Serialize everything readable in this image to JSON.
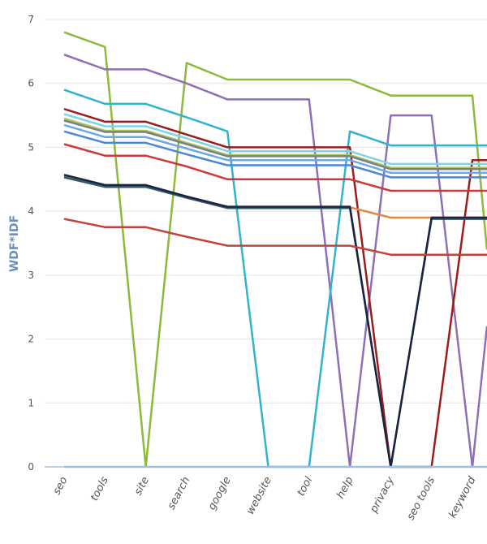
{
  "chart_data": {
    "type": "line",
    "title": "",
    "xlabel": "",
    "ylabel": "WDF*IDF",
    "ylim": [
      0,
      7
    ],
    "yticks": [
      0,
      1,
      2,
      3,
      4,
      5,
      6,
      7
    ],
    "categories": [
      "seo",
      "tools",
      "site",
      "search",
      "google",
      "website",
      "tool",
      "help",
      "privacy",
      "seo tools",
      "keyword"
    ],
    "series": [
      {
        "name": "green",
        "color": "#8cba3a",
        "values": [
          6.8,
          6.57,
          0,
          6.32,
          6.06,
          6.06,
          6.06,
          6.06,
          5.81,
          5.81,
          5.81
        ],
        "tail": 3.4
      },
      {
        "name": "purple",
        "color": "#8e6fb6",
        "values": [
          6.45,
          6.22,
          6.22,
          6.0,
          5.75,
          5.75,
          5.75,
          0,
          5.5,
          5.5,
          0
        ],
        "tail": 2.2
      },
      {
        "name": "teal",
        "color": "#31b3cd",
        "values": [
          5.9,
          5.68,
          5.68,
          5.47,
          5.25,
          0,
          0,
          5.25,
          5.03,
          5.03,
          5.03
        ],
        "tail": 5.03
      },
      {
        "name": "darkred",
        "color": "#9b1c1c",
        "values": [
          5.6,
          5.4,
          5.4,
          5.2,
          5.0,
          5.0,
          5.0,
          5.0,
          0,
          0,
          4.8
        ],
        "tail": 4.8
      },
      {
        "name": "lightcyan",
        "color": "#7fd3e8",
        "values": [
          5.52,
          5.33,
          5.33,
          5.14,
          4.94,
          4.94,
          4.94,
          4.94,
          4.74,
          4.74,
          4.74
        ],
        "tail": 4.74
      },
      {
        "name": "olive",
        "color": "#a8c85a",
        "values": [
          5.45,
          5.26,
          5.26,
          5.07,
          4.88,
          4.88,
          4.88,
          4.88,
          4.68,
          4.68,
          4.68
        ],
        "tail": 4.68
      },
      {
        "name": "grey",
        "color": "#7a7f84",
        "values": [
          5.42,
          5.24,
          5.24,
          5.05,
          4.86,
          4.86,
          4.86,
          4.86,
          4.66,
          4.66,
          4.66
        ],
        "tail": 4.66
      },
      {
        "name": "skyblue",
        "color": "#6aa9e6",
        "values": [
          5.35,
          5.16,
          5.16,
          4.98,
          4.8,
          4.8,
          4.8,
          4.8,
          4.6,
          4.6,
          4.6
        ],
        "tail": 4.6
      },
      {
        "name": "blue",
        "color": "#4d86d6",
        "values": [
          5.25,
          5.07,
          5.07,
          4.89,
          4.72,
          4.72,
          4.72,
          4.72,
          4.53,
          4.53,
          4.53
        ],
        "tail": 4.53
      },
      {
        "name": "red",
        "color": "#cc3b3b",
        "values": [
          5.05,
          4.87,
          4.87,
          4.7,
          4.5,
          4.5,
          4.5,
          4.5,
          4.32,
          4.32,
          4.32
        ],
        "tail": 4.32
      },
      {
        "name": "orange",
        "color": "#e08a4a",
        "values": [
          4.55,
          4.4,
          4.4,
          4.22,
          4.06,
          4.06,
          4.06,
          4.06,
          3.9,
          3.9,
          3.9
        ],
        "tail": 3.9
      },
      {
        "name": "darkteal",
        "color": "#2e5a6b",
        "values": [
          4.53,
          4.38,
          4.38,
          4.21,
          4.05,
          4.05,
          4.05,
          4.05,
          0,
          3.88,
          3.88
        ],
        "tail": 3.88
      },
      {
        "name": "navy",
        "color": "#1c2240",
        "values": [
          4.57,
          4.41,
          4.41,
          4.23,
          4.07,
          4.07,
          4.07,
          4.07,
          0,
          3.9,
          3.9
        ],
        "tail": 3.9
      },
      {
        "name": "brickred",
        "color": "#c0443a",
        "values": [
          3.88,
          3.75,
          3.75,
          3.6,
          3.46,
          3.46,
          3.46,
          3.46,
          3.32,
          3.32,
          3.32
        ],
        "tail": 3.32
      },
      {
        "name": "baseline",
        "color": "#9bbfe2",
        "values": [
          0,
          0,
          0,
          0,
          0,
          0,
          0,
          0,
          0,
          0,
          0
        ],
        "tail": 0
      }
    ]
  }
}
